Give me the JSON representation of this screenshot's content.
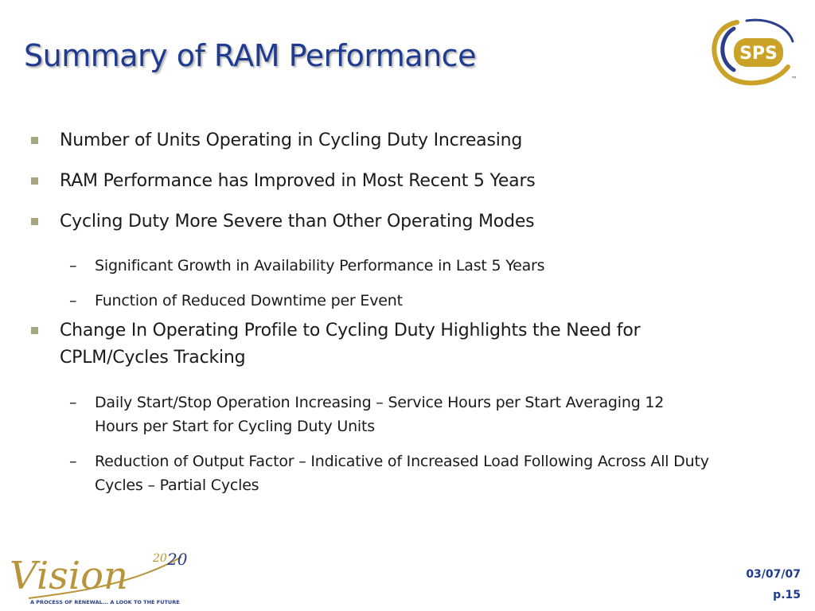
{
  "slide": {
    "title": "Summary of RAM Performance",
    "bullets": [
      {
        "text": "Number of Units Operating in Cycling Duty Increasing"
      },
      {
        "text": "RAM Performance has Improved in Most Recent 5 Years"
      },
      {
        "text": "Cycling Duty More Severe than Other Operating Modes"
      },
      {
        "text": "Change In Operating Profile to Cycling Duty Highlights the Need for CPLM/Cycles Tracking"
      }
    ],
    "sub_bullets": [
      {
        "text": "Significant Growth in Availability Performance in Last 5 Years"
      },
      {
        "text": "Function of Reduced Downtime per Event"
      },
      {
        "text": "Daily Start/Stop Operation Increasing – Service Hours per Start Averaging 12 Hours per Start for Cycling Duty Units"
      },
      {
        "text": "Reduction of Output Factor – Indicative of Increased Load Following Across All Duty Cycles – Partial Cycles"
      }
    ],
    "dash": "–"
  },
  "logos": {
    "sps_text": "SPS",
    "tm": "™",
    "vision_text": "Vision",
    "vision_year_a": "20",
    "vision_year_b": "20",
    "vision_tagline": "A PROCESS OF RENEWAL... A LOOK TO THE FUTURE"
  },
  "footer": {
    "date": "03/07/07",
    "page": "p.15"
  },
  "colors": {
    "title": "#1f3b8f",
    "bullet_marker": "#a8a67e",
    "gold": "#c9a227",
    "navy": "#1f3b8f"
  }
}
